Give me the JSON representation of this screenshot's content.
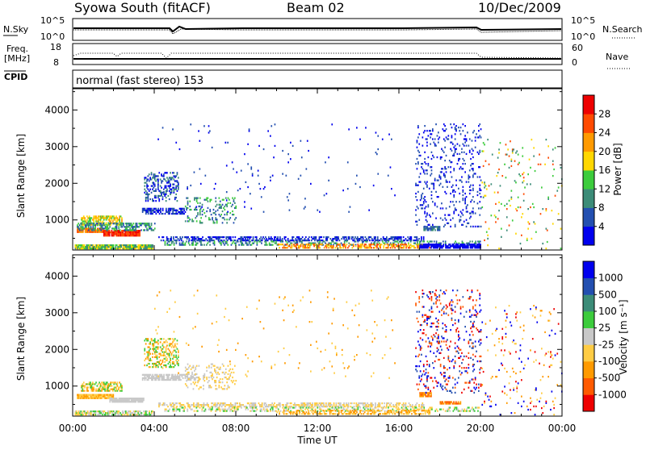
{
  "header": {
    "radar": "Syowa South (fitACF)",
    "beam": "Beam 02",
    "date": "10/Dec/2009"
  },
  "noise_panel": {
    "left_label": "N.Sky",
    "right_label": "N.Search",
    "left_ticks": [
      "10^5",
      "10^0"
    ],
    "right_ticks": [
      "10^5",
      "10^0"
    ]
  },
  "freq_panel": {
    "left_label_1": "Freq.",
    "left_label_2": "[MHz]",
    "right_label": "Nave",
    "left_ticks": [
      "18",
      "8"
    ],
    "right_ticks": [
      "60",
      "0"
    ]
  },
  "cpid": {
    "label": "CPID",
    "mode_text": "normal (fast stereo) 153"
  },
  "x_axis": {
    "label": "Time UT",
    "ticks": [
      "00:00",
      "04:00",
      "08:00",
      "12:00",
      "16:00",
      "20:00",
      "00:00"
    ]
  },
  "chart_data": [
    {
      "type": "heatmap",
      "name": "power",
      "ylabel": "Slant Range [km]",
      "yticks": [
        "1000",
        "2000",
        "3000",
        "4000"
      ],
      "ylim": [
        180,
        4580
      ],
      "xlim": [
        0,
        24
      ],
      "colorbar": {
        "label": "Power [dB]",
        "tick_labels": [
          "4",
          "8",
          "12",
          "16",
          "20",
          "24",
          "28"
        ],
        "colors": [
          "#0000ee",
          "#234fb0",
          "#3c8c78",
          "#3ccc3c",
          "#ffd700",
          "#ff9a00",
          "#ff4a00",
          "#ee0000"
        ]
      },
      "regions": [
        {
          "t0": 0.1,
          "t1": 3.9,
          "r0": 200,
          "r1": 300,
          "density": 0.9,
          "colors": [
            2,
            3,
            4
          ]
        },
        {
          "t0": 0.2,
          "t1": 1.5,
          "r0": 650,
          "r1": 780,
          "density": 0.95,
          "colors": [
            5,
            6
          ]
        },
        {
          "t0": 1.5,
          "t1": 3.3,
          "r0": 550,
          "r1": 700,
          "density": 0.95,
          "colors": [
            6,
            7
          ]
        },
        {
          "t0": 0.4,
          "t1": 2.4,
          "r0": 850,
          "r1": 1100,
          "density": 0.6,
          "colors": [
            3,
            4,
            5
          ]
        },
        {
          "t0": 0.2,
          "t1": 4.0,
          "r0": 700,
          "r1": 900,
          "density": 0.5,
          "colors": [
            1,
            2,
            3
          ]
        },
        {
          "t0": 3.5,
          "t1": 5.2,
          "r0": 1500,
          "r1": 2300,
          "density": 0.35,
          "colors": [
            0,
            1,
            2
          ]
        },
        {
          "t0": 3.4,
          "t1": 5.5,
          "r0": 1150,
          "r1": 1300,
          "density": 0.7,
          "colors": [
            0,
            1
          ]
        },
        {
          "t0": 4.2,
          "t1": 17.2,
          "r0": 420,
          "r1": 520,
          "density": 0.55,
          "colors": [
            0,
            1
          ]
        },
        {
          "t0": 4.5,
          "t1": 20.0,
          "r0": 300,
          "r1": 420,
          "density": 0.35,
          "colors": [
            1,
            2,
            3
          ]
        },
        {
          "t0": 10.0,
          "t1": 17.5,
          "r0": 220,
          "r1": 320,
          "density": 0.5,
          "colors": [
            4,
            5,
            6
          ]
        },
        {
          "t0": 17.0,
          "t1": 20.0,
          "r0": 220,
          "r1": 330,
          "density": 0.85,
          "colors": [
            0
          ]
        },
        {
          "t0": 17.2,
          "t1": 18.0,
          "r0": 700,
          "r1": 800,
          "density": 0.8,
          "colors": [
            1,
            2
          ]
        },
        {
          "t0": 16.8,
          "t1": 20.0,
          "r0": 800,
          "r1": 3600,
          "density": 0.12,
          "colors": [
            0,
            1
          ]
        },
        {
          "t0": 5.5,
          "t1": 8.0,
          "r0": 900,
          "r1": 1600,
          "density": 0.2,
          "colors": [
            1,
            2,
            3
          ]
        },
        {
          "t0": 20.0,
          "t1": 24.0,
          "r0": 200,
          "r1": 3200,
          "density": 0.03,
          "colors": [
            2,
            3,
            4,
            6
          ]
        },
        {
          "t0": 4.0,
          "t1": 16.0,
          "r0": 1200,
          "r1": 3600,
          "density": 0.012,
          "colors": [
            0,
            1
          ]
        }
      ]
    },
    {
      "type": "heatmap",
      "name": "velocity",
      "ylabel": "Slant Range [km]",
      "yticks": [
        "1000",
        "2000",
        "3000",
        "4000"
      ],
      "ylim": [
        180,
        4580
      ],
      "xlim": [
        0,
        24
      ],
      "colorbar": {
        "label": "Velocity [m s⁻¹]",
        "tick_labels": [
          "-1000",
          "-500",
          "-100",
          "-25",
          "25",
          "100",
          "500",
          "1000"
        ],
        "colors": [
          "#ee0000",
          "#ff5a00",
          "#ff9a00",
          "#ffcc44",
          "#c8c8c8",
          "#3ccc3c",
          "#3c8c78",
          "#234fb0",
          "#0000ee"
        ]
      },
      "regions": [
        {
          "t0": 0.1,
          "t1": 3.9,
          "r0": 200,
          "r1": 300,
          "density": 0.7,
          "colors": [
            3,
            4,
            5
          ]
        },
        {
          "t0": 0.2,
          "t1": 2.0,
          "r0": 650,
          "r1": 780,
          "density": 0.95,
          "colors": [
            2,
            3
          ]
        },
        {
          "t0": 1.8,
          "t1": 3.5,
          "r0": 550,
          "r1": 680,
          "density": 0.95,
          "colors": [
            4
          ]
        },
        {
          "t0": 0.4,
          "t1": 2.4,
          "r0": 850,
          "r1": 1100,
          "density": 0.6,
          "colors": [
            2,
            3,
            5
          ]
        },
        {
          "t0": 3.5,
          "t1": 5.2,
          "r0": 1500,
          "r1": 2300,
          "density": 0.35,
          "colors": [
            2,
            3,
            5
          ]
        },
        {
          "t0": 3.4,
          "t1": 6.0,
          "r0": 1150,
          "r1": 1300,
          "density": 0.7,
          "colors": [
            4
          ]
        },
        {
          "t0": 4.2,
          "t1": 17.2,
          "r0": 420,
          "r1": 520,
          "density": 0.55,
          "colors": [
            3,
            4
          ]
        },
        {
          "t0": 4.5,
          "t1": 20.0,
          "r0": 300,
          "r1": 420,
          "density": 0.35,
          "colors": [
            3,
            4,
            5
          ]
        },
        {
          "t0": 10.0,
          "t1": 17.5,
          "r0": 220,
          "r1": 320,
          "density": 0.5,
          "colors": [
            2,
            3
          ]
        },
        {
          "t0": 17.0,
          "t1": 17.6,
          "r0": 700,
          "r1": 800,
          "density": 0.9,
          "colors": [
            1,
            2
          ]
        },
        {
          "t0": 18.0,
          "t1": 19.0,
          "r0": 500,
          "r1": 580,
          "density": 0.9,
          "colors": [
            1,
            2
          ]
        },
        {
          "t0": 16.8,
          "t1": 20.0,
          "r0": 800,
          "r1": 3600,
          "density": 0.12,
          "colors": [
            0,
            1,
            7,
            8
          ]
        },
        {
          "t0": 5.5,
          "t1": 8.0,
          "r0": 900,
          "r1": 1600,
          "density": 0.2,
          "colors": [
            3,
            4
          ]
        },
        {
          "t0": 20.0,
          "t1": 24.0,
          "r0": 200,
          "r1": 3200,
          "density": 0.03,
          "colors": [
            0,
            2,
            3,
            8
          ]
        },
        {
          "t0": 4.0,
          "t1": 16.0,
          "r0": 1200,
          "r1": 3600,
          "density": 0.012,
          "colors": [
            2,
            3
          ]
        }
      ]
    }
  ]
}
